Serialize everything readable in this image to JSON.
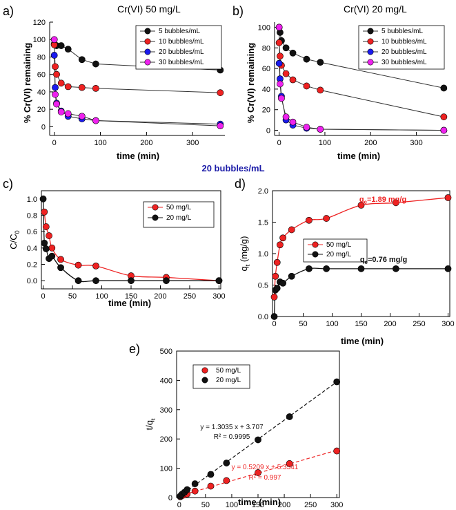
{
  "figure_note": "20 bubbles/mL",
  "colors": {
    "red": "#ee2222",
    "black": "#111111",
    "blue": "#1a1aee",
    "magenta": "#ee22ee",
    "note": "#1c1ca8"
  },
  "chart_data": [
    {
      "id": "a",
      "panel_label": "a)",
      "type": "line",
      "title": "Cr(VI) 50 mg/L",
      "xlabel": "time (min)",
      "ylabel": "% Cr(VI) remaining",
      "xlim": [
        -10,
        370
      ],
      "ylim": [
        -10,
        120
      ],
      "xticks": [
        0,
        100,
        200,
        300
      ],
      "yticks": [
        0,
        20,
        40,
        60,
        80,
        100,
        120
      ],
      "legend": "top-right",
      "series": [
        {
          "name": "5 bubbles/mL",
          "color": "#111111",
          "x": [
            0,
            5,
            15,
            30,
            60,
            90,
            360
          ],
          "y": [
            95,
            93,
            93,
            89,
            77,
            72,
            65
          ]
        },
        {
          "name": "10 bubbles/mL",
          "color": "#ee2222",
          "x": [
            0,
            2,
            5,
            15,
            30,
            60,
            90,
            360
          ],
          "y": [
            94,
            69,
            60,
            50,
            46,
            45,
            44,
            39
          ]
        },
        {
          "name": "20 bubbles/mL",
          "color": "#1a1aee",
          "x": [
            0,
            2,
            5,
            15,
            30,
            60,
            90,
            360
          ],
          "y": [
            82,
            45,
            27,
            18,
            12,
            9,
            7,
            3
          ]
        },
        {
          "name": "30 bubbles/mL",
          "color": "#ee22ee",
          "x": [
            0,
            2,
            5,
            15,
            30,
            60,
            90,
            360
          ],
          "y": [
            100,
            37,
            26,
            17,
            15,
            12,
            7,
            1
          ]
        }
      ]
    },
    {
      "id": "b",
      "panel_label": "b)",
      "type": "line",
      "title": "Cr(VI) 20 mg/L",
      "xlabel": "time (min)",
      "ylabel": "% Cr(VI) remaining",
      "xlim": [
        -10,
        370
      ],
      "ylim": [
        -5,
        105
      ],
      "xticks": [
        0,
        100,
        200,
        300
      ],
      "yticks": [
        0,
        20,
        40,
        60,
        80,
        100
      ],
      "legend": "top-right",
      "series": [
        {
          "name": "5 bubbles/mL",
          "color": "#111111",
          "x": [
            0,
            2,
            5,
            15,
            30,
            60,
            90,
            360
          ],
          "y": [
            100,
            95,
            87,
            80,
            75,
            69,
            66,
            41
          ]
        },
        {
          "name": "10 bubbles/mL",
          "color": "#ee2222",
          "x": [
            0,
            2,
            5,
            15,
            30,
            60,
            90,
            360
          ],
          "y": [
            85,
            72,
            63,
            55,
            49,
            43,
            39,
            13
          ]
        },
        {
          "name": "20 bubbles/mL",
          "color": "#1a1aee",
          "x": [
            0,
            2,
            5,
            15,
            30,
            60,
            90,
            360
          ],
          "y": [
            65,
            50,
            33,
            10,
            5,
            2,
            1,
            0
          ]
        },
        {
          "name": "30 bubbles/mL",
          "color": "#ee22ee",
          "x": [
            0,
            2,
            5,
            15,
            30,
            60,
            90,
            360
          ],
          "y": [
            100,
            45,
            31,
            13,
            8,
            3,
            1,
            0
          ]
        }
      ]
    },
    {
      "id": "c",
      "panel_label": "c)",
      "type": "line",
      "xlabel": "time (min)",
      "ylabel": "C/C",
      "ylabel_sub": "0",
      "xlim": [
        -3,
        303
      ],
      "ylim": [
        -0.1,
        1.1
      ],
      "xticks": [
        0,
        50,
        100,
        150,
        200,
        250,
        300
      ],
      "yticks": [
        0.0,
        0.2,
        0.4,
        0.6,
        0.8,
        1.0
      ],
      "yticklabels": [
        "0.0",
        "0.2",
        "0.4",
        "0.6",
        "0.8",
        "1.0"
      ],
      "legend": "upper-right",
      "series": [
        {
          "name": "50 mg/L",
          "color": "#ee2222",
          "x": [
            2,
            5,
            10,
            15,
            30,
            60,
            90,
            150,
            210,
            300
          ],
          "y": [
            0.84,
            0.66,
            0.55,
            0.4,
            0.26,
            0.19,
            0.18,
            0.06,
            0.04,
            0.0
          ]
        },
        {
          "name": "20 mg/L",
          "color": "#111111",
          "x": [
            0,
            2,
            5,
            10,
            15,
            30,
            60,
            90,
            150,
            210,
            300
          ],
          "y": [
            1.0,
            0.46,
            0.39,
            0.27,
            0.3,
            0.16,
            0.0,
            0.0,
            0.0,
            0.0,
            0.0
          ]
        }
      ]
    },
    {
      "id": "d",
      "panel_label": "d)",
      "type": "line",
      "xlabel": "time (min)",
      "ylabel": "q",
      "ylabel_sub": "t",
      "ylabel_suffix": " (mg/g)",
      "xlim": [
        -3,
        303
      ],
      "ylim": [
        0,
        2.0
      ],
      "xticks": [
        0,
        50,
        100,
        150,
        200,
        250,
        300
      ],
      "yticks": [
        0.0,
        0.5,
        1.0,
        1.5,
        2.0
      ],
      "yticklabels": [
        "0.0",
        "0.5",
        "1.0",
        "1.5",
        "2.0"
      ],
      "legend": "center",
      "annotations": [
        {
          "prefix": "q",
          "sub": "e",
          "text": "=1.89 mg/g",
          "color": "#ee2222"
        },
        {
          "prefix": "q",
          "sub": "e",
          "text": "=0.76 mg/g",
          "color": "#111111"
        }
      ],
      "series": [
        {
          "name": "50 mg/L",
          "color": "#ee2222",
          "x": [
            0,
            2,
            5,
            10,
            15,
            30,
            60,
            90,
            150,
            210,
            300
          ],
          "y": [
            0.31,
            0.64,
            0.86,
            1.14,
            1.25,
            1.38,
            1.53,
            1.56,
            1.77,
            1.81,
            1.89
          ]
        },
        {
          "name": "20 mg/L",
          "color": "#111111",
          "x": [
            0,
            2,
            5,
            10,
            15,
            30,
            60,
            90,
            150,
            210,
            300
          ],
          "y": [
            0.0,
            0.42,
            0.45,
            0.55,
            0.53,
            0.64,
            0.76,
            0.76,
            0.76,
            0.76,
            0.76
          ]
        }
      ]
    },
    {
      "id": "e",
      "panel_label": "e)",
      "type": "scatter",
      "xlabel": "time (min)",
      "ylabel": "t/q",
      "ylabel_sub": "t",
      "xlim": [
        -5,
        305
      ],
      "ylim": [
        0,
        500
      ],
      "xticks": [
        0,
        50,
        100,
        150,
        200,
        250,
        300
      ],
      "yticks": [
        0,
        100,
        200,
        300,
        400,
        500
      ],
      "legend": "top-left",
      "fits": [
        {
          "equation": "y = 1.3035 x + 3.707",
          "r2": "R² = 0.9995",
          "color": "#111111",
          "slope": 1.3035,
          "intercept": 3.707
        },
        {
          "equation": "y = 0.5209 x + 5.3541",
          "r2": "R² = 0.997",
          "color": "#ee2222",
          "slope": 0.5209,
          "intercept": 5.3541
        }
      ],
      "series": [
        {
          "name": "50 mg/L",
          "color": "#ee2222",
          "x": [
            2,
            5,
            10,
            15,
            30,
            60,
            90,
            150,
            210,
            300
          ],
          "y": [
            3,
            6,
            9,
            12,
            22,
            39,
            58,
            85,
            116,
            159
          ]
        },
        {
          "name": "20 mg/L",
          "color": "#111111",
          "x": [
            2,
            5,
            10,
            15,
            30,
            60,
            90,
            150,
            210,
            300
          ],
          "y": [
            5,
            11,
            18,
            27,
            47,
            79,
            118,
            197,
            276,
            395
          ]
        }
      ]
    }
  ]
}
